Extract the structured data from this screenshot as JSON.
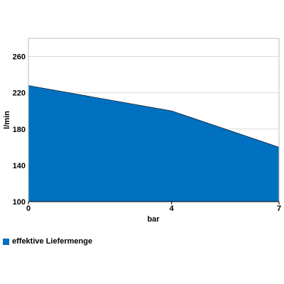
{
  "chart_data": {
    "type": "area",
    "x": [
      0,
      4,
      7
    ],
    "xticks": [
      "0",
      "4",
      "7"
    ],
    "xlabel": "bar",
    "ylabel": "l/min",
    "ylim": [
      100,
      280
    ],
    "yticks": [
      100,
      140,
      180,
      220,
      260
    ],
    "grid": true,
    "legend_position": "bottom-left",
    "series": [
      {
        "name": "effektive Liefermenge",
        "values": [
          228,
          200,
          160
        ],
        "color": "#0070c0"
      }
    ]
  }
}
